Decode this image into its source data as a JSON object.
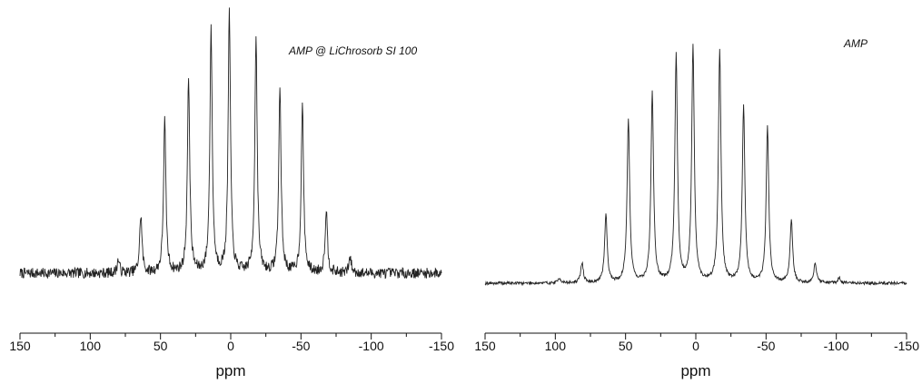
{
  "chart_data": [
    {
      "type": "line",
      "title": "",
      "annotation": "AMP @ LiChrosorb SI 100",
      "xlabel": "ppm",
      "ylabel": "",
      "xlim": [
        150,
        -150
      ],
      "x_reversed": true,
      "xticks": [
        150,
        100,
        50,
        0,
        -50,
        -100,
        -150
      ],
      "xtick_labels": [
        "150",
        "100",
        "50",
        "0",
        "-50",
        "-100",
        "-150"
      ],
      "ylim": [
        0,
        1
      ],
      "grid": false,
      "legend": "none",
      "line_color": "#222222",
      "baseline": 0.0,
      "noise_amplitude": 0.02,
      "series": [
        {
          "x": [
            80,
            64,
            47,
            30,
            14,
            1,
            -18,
            -35,
            -51,
            -68,
            -85
          ],
          "values": [
            0.05,
            0.22,
            0.58,
            0.74,
            0.93,
            0.99,
            0.9,
            0.7,
            0.64,
            0.24,
            0.06
          ]
        }
      ]
    },
    {
      "type": "line",
      "title": "",
      "annotation": "AMP",
      "xlabel": "ppm",
      "ylabel": "",
      "xlim": [
        150,
        -150
      ],
      "x_reversed": true,
      "xticks": [
        150,
        100,
        50,
        0,
        -50,
        -100,
        -150
      ],
      "xtick_labels": [
        "150",
        "100",
        "50",
        "0",
        "-50",
        "-100",
        "-150"
      ],
      "ylim": [
        0,
        1
      ],
      "grid": false,
      "legend": "none",
      "line_color": "#222222",
      "baseline": 0.0,
      "noise_amplitude": 0.006,
      "series": [
        {
          "x": [
            97,
            81,
            64,
            48,
            31,
            14,
            2,
            -17,
            -34,
            -51,
            -68,
            -85,
            -102
          ],
          "values": [
            0.02,
            0.08,
            0.27,
            0.65,
            0.75,
            0.9,
            0.94,
            0.92,
            0.7,
            0.62,
            0.25,
            0.08,
            0.02
          ]
        }
      ]
    }
  ]
}
